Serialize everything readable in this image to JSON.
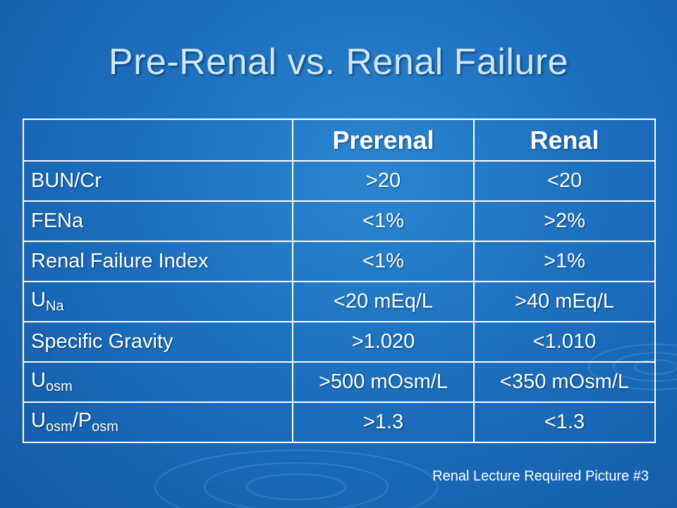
{
  "title": "Pre-Renal vs. Renal Failure",
  "table": {
    "columns": [
      "",
      "Prerenal",
      "Renal"
    ],
    "rows": [
      {
        "label": "BUN/Cr",
        "prerenal": ">20",
        "renal": "<20"
      },
      {
        "label": "FENa",
        "prerenal": "<1%",
        "renal": ">2%"
      },
      {
        "label": "Renal Failure Index",
        "prerenal": "<1%",
        "renal": ">1%"
      },
      {
        "label_main": "U",
        "label_sub": "Na",
        "prerenal": "<20 mEq/L",
        "renal": ">40 mEq/L"
      },
      {
        "label": "Specific Gravity",
        "prerenal": ">1.020",
        "renal": "<1.010"
      },
      {
        "label_main": "U",
        "label_sub": "osm",
        "prerenal": ">500 mOsm/L",
        "renal": "<350 mOsm/L"
      },
      {
        "label_main": "U",
        "label_sub": "osm",
        "label_slash": "/P",
        "label_sub2": "osm",
        "prerenal": ">1.3",
        "renal": "<1.3"
      }
    ]
  },
  "caption": "Renal Lecture Required Picture #3",
  "colors": {
    "background": "#1c6fbe",
    "title": "#cfe6f7",
    "text": "#ffffff",
    "grid": "#ffffff"
  }
}
